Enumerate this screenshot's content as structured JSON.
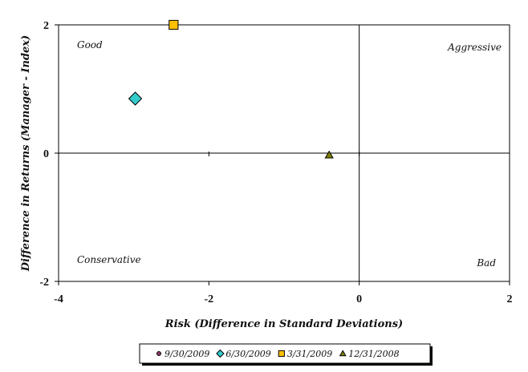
{
  "chart_data": {
    "type": "scatter",
    "title": "",
    "xlabel": "Risk (Difference in Standard Deviations)",
    "ylabel": "Difference in Returns (Manager - Index)",
    "xlim": [
      -4,
      2
    ],
    "ylim": [
      -2,
      2
    ],
    "x_ticks": [
      -4,
      -2,
      0,
      2
    ],
    "y_ticks": [
      -2,
      0,
      2
    ],
    "grid": false,
    "legend_position": "bottom",
    "quadrant_labels": {
      "top_left": "Good",
      "top_right": "Aggressive",
      "bottom_left": "Conservative",
      "bottom_right": "Bad"
    },
    "series": [
      {
        "name": "9/30/2009",
        "marker": "circle",
        "color": "#8e3a6e",
        "points": []
      },
      {
        "name": "6/30/2009",
        "marker": "diamond",
        "color": "#33cccc",
        "points": [
          {
            "x": -2.98,
            "y": 0.85
          }
        ]
      },
      {
        "name": "3/31/2009",
        "marker": "square",
        "color": "#ffc000",
        "points": [
          {
            "x": -2.47,
            "y": 2.0
          }
        ]
      },
      {
        "name": "12/31/2008",
        "marker": "triangle",
        "color": "#808000",
        "points": [
          {
            "x": -0.4,
            "y": -0.03
          }
        ]
      }
    ]
  }
}
